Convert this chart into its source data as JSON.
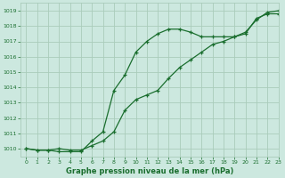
{
  "title": "Graphe pression niveau de la mer (hPa)",
  "background_color": "#cce8df",
  "grid_color": "#aaccbb",
  "line_color": "#1a6e2e",
  "xlim": [
    -0.5,
    23
  ],
  "ylim": [
    1009.5,
    1019.5
  ],
  "xticks": [
    0,
    1,
    2,
    3,
    4,
    5,
    6,
    7,
    8,
    9,
    10,
    11,
    12,
    13,
    14,
    15,
    16,
    17,
    18,
    19,
    20,
    21,
    22,
    23
  ],
  "yticks": [
    1010,
    1011,
    1012,
    1013,
    1014,
    1015,
    1016,
    1017,
    1018,
    1019
  ],
  "line1_x": [
    0,
    1,
    2,
    3,
    4,
    5,
    6,
    7,
    8,
    9,
    10,
    11,
    12,
    13,
    14,
    15,
    16,
    17,
    18,
    19,
    20,
    21,
    22,
    23
  ],
  "line1_y": [
    1010.0,
    1009.9,
    1009.9,
    1010.0,
    1009.9,
    1009.9,
    1010.2,
    1010.5,
    1011.1,
    1012.5,
    1013.2,
    1013.5,
    1013.8,
    1014.6,
    1015.3,
    1015.8,
    1016.3,
    1016.8,
    1017.0,
    1017.3,
    1017.6,
    1018.4,
    1018.9,
    1019.0
  ],
  "line2_x": [
    0,
    1,
    2,
    3,
    4,
    5,
    6,
    7,
    8,
    9,
    10,
    11,
    12,
    13,
    14,
    15,
    16,
    17,
    18,
    19,
    20,
    21,
    22,
    23
  ],
  "line2_y": [
    1010.0,
    1009.9,
    1009.9,
    1009.8,
    1009.8,
    1009.8,
    1010.5,
    1011.1,
    1013.8,
    1014.8,
    1016.3,
    1017.0,
    1017.5,
    1017.8,
    1017.8,
    1017.6,
    1017.3,
    1017.3,
    1017.3,
    1017.3,
    1017.5,
    1018.5,
    1018.8,
    1018.8
  ]
}
